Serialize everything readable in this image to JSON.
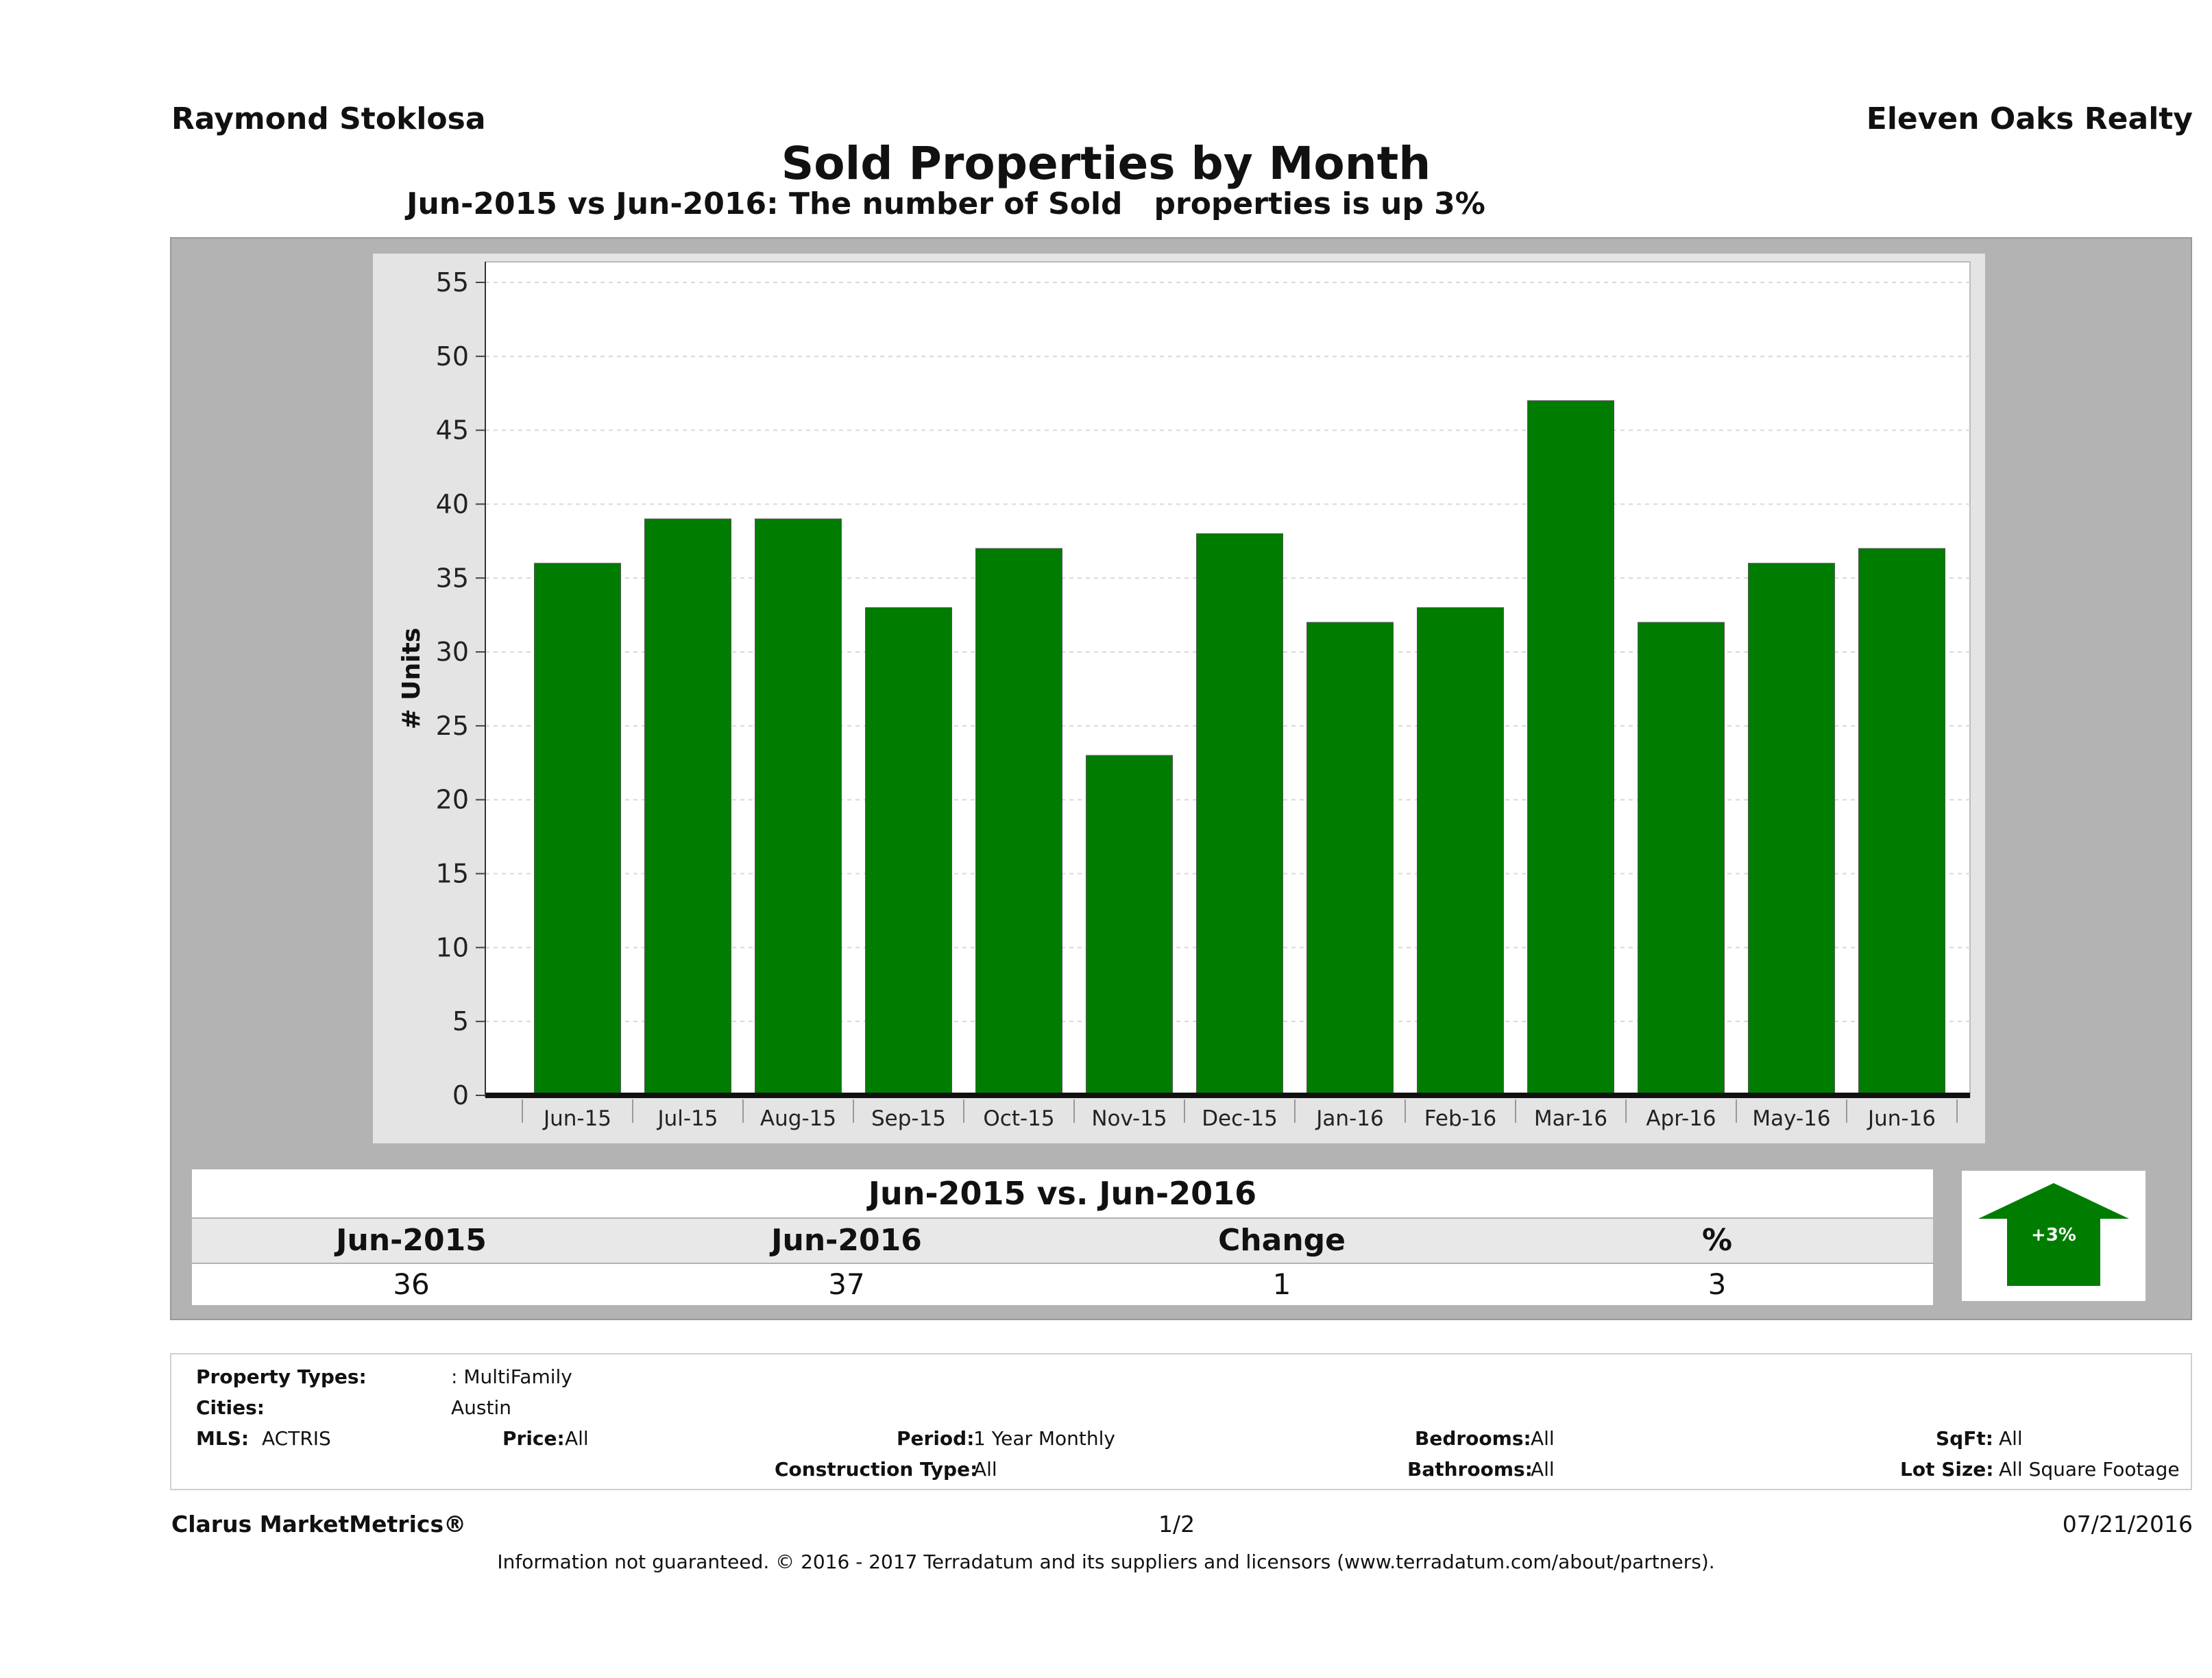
{
  "header": {
    "agent": "Raymond Stoklosa",
    "brokerage": "Eleven Oaks Realty"
  },
  "chart_data": {
    "type": "bar",
    "title": "Sold Properties by Month",
    "subtitle": "Jun-2015 vs Jun-2016: The number of Sold   properties is up 3%",
    "ylabel": "# Units",
    "xlabel": "",
    "ylim": [
      0,
      55
    ],
    "yticks": [
      0,
      5,
      10,
      15,
      20,
      25,
      30,
      35,
      40,
      45,
      50,
      55
    ],
    "categories": [
      "Jun-15",
      "Jul-15",
      "Aug-15",
      "Sep-15",
      "Oct-15",
      "Nov-15",
      "Dec-15",
      "Jan-16",
      "Feb-16",
      "Mar-16",
      "Apr-16",
      "May-16",
      "Jun-16"
    ],
    "values": [
      36,
      39,
      39,
      33,
      37,
      23,
      38,
      32,
      33,
      47,
      32,
      36,
      37
    ],
    "bar_color": "#007d00",
    "grid": true
  },
  "comparison": {
    "title": "Jun-2015 vs. Jun-2016",
    "headers": [
      "Jun-2015",
      "Jun-2016",
      "Change",
      "%"
    ],
    "values": [
      "36",
      "37",
      "1",
      "3"
    ],
    "badge": "+3%",
    "badge_color": "#007d00"
  },
  "criteria": {
    "property_types_label": "Property Types:",
    "property_types": ": MultiFamily",
    "cities_label": "Cities:",
    "cities": "Austin",
    "mls_label": "MLS:",
    "mls": "ACTRIS",
    "price_label": "Price:",
    "price": "All",
    "period_label": "Period:",
    "period": "1 Year Monthly",
    "construction_label": "Construction Type:",
    "construction": "All",
    "bedrooms_label": "Bedrooms:",
    "bedrooms": "All",
    "bathrooms_label": "Bathrooms:",
    "bathrooms": "All",
    "sqft_label": "SqFt:",
    "sqft": "All",
    "lot_label": "Lot Size:",
    "lot": "All Square Footage"
  },
  "footer": {
    "brand": "Clarus MarketMetrics®",
    "page": "1/2",
    "date": "07/21/2016",
    "disclaimer": "Information not guaranteed. © 2016 - 2017 Terradatum and its suppliers and licensors (www.terradatum.com/about/partners)."
  }
}
